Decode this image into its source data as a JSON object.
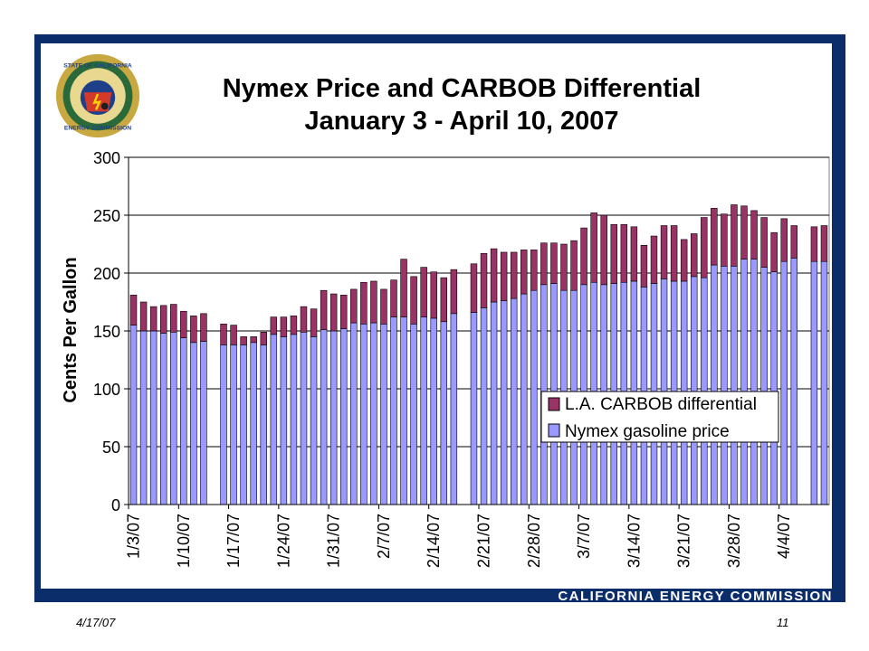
{
  "slide": {
    "org": "CALIFORNIA ENERGY COMMISSION",
    "date": "4/17/07",
    "page": "11",
    "seal_text_top": "STATE OF CALIFORNIA",
    "seal_text_bottom": "ENERGY COMMISSION"
  },
  "colors": {
    "frame": "#0b2e6b",
    "nymex": "#9999ff",
    "differential": "#993366"
  },
  "chart_data": {
    "type": "bar",
    "stacked": true,
    "title": "Nymex Price and CARBOB Differential",
    "subtitle": "January 3 - April 10, 2007",
    "xlabel": "",
    "ylabel": "Cents Per Gallon",
    "ylim": [
      0,
      300
    ],
    "yticks": [
      0,
      50,
      100,
      150,
      200,
      250,
      300
    ],
    "grid": true,
    "legend_position": "lower-right",
    "x_tick_labels": [
      "1/3/07",
      "1/10/07",
      "1/17/07",
      "1/24/07",
      "1/31/07",
      "2/7/07",
      "2/14/07",
      "2/21/07",
      "2/28/07",
      "3/7/07",
      "3/14/07",
      "3/21/07",
      "3/28/07",
      "4/4/07"
    ],
    "categories": [
      "1/3/07",
      "1/4/07",
      "1/5/07",
      "1/8/07",
      "1/9/07",
      "1/10/07",
      "1/11/07",
      "1/12/07",
      "1/16/07",
      "1/17/07",
      "1/18/07",
      "1/19/07",
      "1/22/07",
      "1/23/07",
      "1/24/07",
      "1/25/07",
      "1/26/07",
      "1/29/07",
      "1/30/07",
      "1/31/07",
      "2/1/07",
      "2/2/07",
      "2/5/07",
      "2/6/07",
      "2/7/07",
      "2/8/07",
      "2/9/07",
      "2/12/07",
      "2/13/07",
      "2/14/07",
      "2/15/07",
      "2/16/07",
      "2/20/07",
      "2/21/07",
      "2/22/07",
      "2/23/07",
      "2/26/07",
      "2/27/07",
      "2/28/07",
      "3/1/07",
      "3/2/07",
      "3/5/07",
      "3/6/07",
      "3/7/07",
      "3/8/07",
      "3/9/07",
      "3/12/07",
      "3/13/07",
      "3/14/07",
      "3/15/07",
      "3/16/07",
      "3/19/07",
      "3/20/07",
      "3/21/07",
      "3/22/07",
      "3/23/07",
      "3/26/07",
      "3/27/07",
      "3/28/07",
      "3/29/07",
      "3/30/07",
      "4/2/07",
      "4/3/07",
      "4/4/07",
      "4/5/07",
      "4/9/07",
      "4/10/07"
    ],
    "series": [
      {
        "name": "L.A. CARBOB differential",
        "values": [
          26,
          25,
          21,
          24,
          24,
          23,
          23,
          24,
          18,
          17,
          7,
          5,
          11,
          15,
          17,
          16,
          22,
          24,
          34,
          32,
          29,
          29,
          36,
          36,
          30,
          32,
          50,
          41,
          43,
          40,
          38,
          38,
          42,
          47,
          46,
          42,
          40,
          38,
          35,
          36,
          35,
          40,
          43,
          49,
          60,
          60,
          51,
          50,
          47,
          36,
          41,
          46,
          48,
          36,
          37,
          52,
          49,
          45,
          53,
          46,
          42,
          43,
          34,
          37,
          28,
          30,
          31
        ]
      },
      {
        "name": "Nymex gasoline price",
        "values": [
          155,
          150,
          150,
          148,
          149,
          144,
          140,
          141,
          138,
          138,
          138,
          140,
          138,
          147,
          145,
          147,
          149,
          145,
          151,
          150,
          152,
          157,
          156,
          157,
          156,
          162,
          162,
          156,
          162,
          161,
          158,
          165,
          166,
          170,
          175,
          176,
          178,
          182,
          185,
          190,
          191,
          185,
          185,
          190,
          192,
          190,
          191,
          192,
          193,
          188,
          191,
          195,
          193,
          193,
          197,
          196,
          207,
          206,
          206,
          212,
          212,
          205,
          201,
          210,
          213,
          210,
          210
        ]
      }
    ]
  }
}
